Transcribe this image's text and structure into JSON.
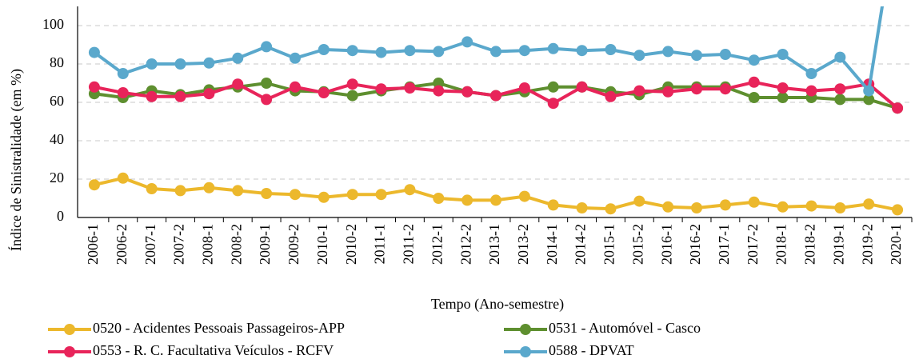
{
  "chart_data": {
    "type": "line",
    "x_label": "Tempo (Ano-semestre)",
    "y_label": "Índice de Sinistralidade (em %)",
    "categories": [
      "2006-1",
      "2006-2",
      "2007-1",
      "2007-2",
      "2008-1",
      "2008-2",
      "2009-1",
      "2009-2",
      "2010-1",
      "2010-2",
      "2011-1",
      "2011-2",
      "2012-1",
      "2012-2",
      "2013-1",
      "2013-2",
      "2014-1",
      "2014-2",
      "2015-1",
      "2015-2",
      "2016-1",
      "2016-2",
      "2017-1",
      "2017-2",
      "2018-1",
      "2018-2",
      "2019-1",
      "2019-2",
      "2020-1"
    ],
    "series": [
      {
        "name": "0520 - Acidentes Pessoais Passageiros-APP",
        "color": "#ecb82c",
        "values": [
          17,
          20.5,
          15,
          14,
          15.5,
          14,
          12.5,
          12,
          10.5,
          12,
          12,
          14.5,
          10,
          9,
          9,
          11,
          6.5,
          5,
          4.5,
          8.5,
          5.5,
          5,
          6.5,
          8,
          5.5,
          6,
          5,
          7,
          4
        ]
      },
      {
        "name": "0531 - Automóvel - Casco",
        "color": "#5e8f2f",
        "values": [
          64.5,
          62.5,
          66,
          64,
          66.5,
          68,
          70,
          66,
          65.5,
          63.5,
          66,
          68,
          70,
          65.5,
          63.5,
          65.5,
          68,
          68,
          65.5,
          64,
          68,
          68,
          68,
          62.5,
          62.5,
          62.5,
          61.5,
          61.5,
          57
        ]
      },
      {
        "name": "0553 - R. C. Facultativa Veículos - RCFV",
        "color": "#e8245a",
        "values": [
          68,
          65,
          63,
          63,
          64.5,
          69.5,
          61.5,
          68,
          65,
          69.5,
          67,
          67.5,
          66,
          65.5,
          63.5,
          67.5,
          59.5,
          68,
          63,
          66,
          65.5,
          67,
          67,
          70.5,
          67.5,
          66,
          67,
          69.5,
          57
        ]
      },
      {
        "name": "0588 - DPVAT",
        "color": "#5aa8cc",
        "values": [
          86,
          75,
          80,
          80,
          80.5,
          83,
          89,
          83,
          87.5,
          87,
          86,
          87,
          86.5,
          91.5,
          86.5,
          87,
          88,
          87,
          87.5,
          84.5,
          86.5,
          84.5,
          85,
          82,
          85,
          75,
          83.5,
          66,
          160
        ]
      }
    ],
    "ylim": [
      0,
      110
    ],
    "yticks": [
      0,
      20,
      40,
      60,
      80,
      100
    ],
    "grid": true,
    "legend": "bottom"
  }
}
